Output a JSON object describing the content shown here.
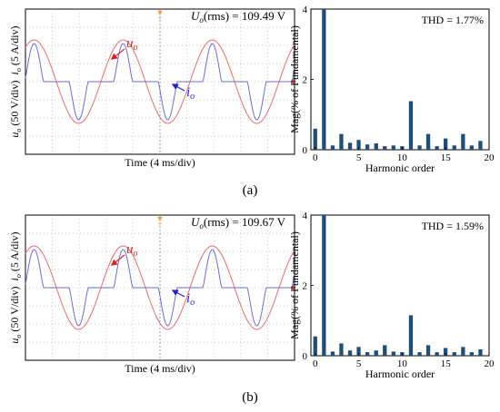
{
  "colors": {
    "voltage": "#f06a6a",
    "current": "#6b6bdc",
    "annot_voltage": "#e02020",
    "annot_current": "#2222cc",
    "bar": "#1f4e79",
    "grid": "#9a9a9a",
    "trigger": "#f0a030"
  },
  "panels": [
    {
      "label": "(a)",
      "scope": {
        "rms_label": "U",
        "rms_subscript": "o",
        "rms_text": "(rms) = 109.49 V",
        "ylabel_u": "u",
        "ylabel_u_sub": "o",
        "ylabel_u_unit": " (50 V/div)",
        "ylabel_i": "i",
        "ylabel_i_sub": "o",
        "ylabel_i_unit": " (5 A/div)",
        "xlabel": "Time (4 ms/div)",
        "u_label": "u",
        "u_sub": "o",
        "i_label": "i",
        "i_sub": "o"
      },
      "chart_data": {
        "type": "bar",
        "thd_text": "THD = 1.77%",
        "xlabel": "Harmonic order",
        "ylabel": "Mag(% of Fundamental)",
        "ylim": [
          0,
          4
        ],
        "yticks": [
          0,
          2,
          4
        ],
        "xlim": [
          -0.5,
          20
        ],
        "xticks": [
          0,
          5,
          10,
          15,
          20
        ],
        "categories": [
          0,
          1,
          2,
          3,
          4,
          5,
          6,
          7,
          8,
          9,
          10,
          11,
          12,
          13,
          14,
          15,
          16,
          17,
          18,
          19
        ],
        "values": [
          0.6,
          4.0,
          0.12,
          0.45,
          0.2,
          0.28,
          0.15,
          0.18,
          0.1,
          0.12,
          0.1,
          1.38,
          0.12,
          0.45,
          0.1,
          0.32,
          0.12,
          0.45,
          0.12,
          0.25
        ]
      }
    },
    {
      "label": "(b)",
      "scope": {
        "rms_label": "U",
        "rms_subscript": "o",
        "rms_text": "(rms) = 109.67 V",
        "ylabel_u": "u",
        "ylabel_u_sub": "o",
        "ylabel_u_unit": " (50 V/div)",
        "ylabel_i": "i",
        "ylabel_i_sub": "o",
        "ylabel_i_unit": " (5 A/div)",
        "xlabel": "Time (4 ms/div)",
        "u_label": "u",
        "u_sub": "o",
        "i_label": "i",
        "i_sub": "o"
      },
      "chart_data": {
        "type": "bar",
        "thd_text": "THD = 1.59%",
        "xlabel": "Harmonic order",
        "ylabel": "Mag(% of Fundamental)",
        "ylim": [
          0,
          4
        ],
        "yticks": [
          0,
          2,
          4
        ],
        "xlim": [
          -0.5,
          20
        ],
        "xticks": [
          0,
          5,
          10,
          15,
          20
        ],
        "categories": [
          0,
          1,
          2,
          3,
          4,
          5,
          6,
          7,
          8,
          9,
          10,
          11,
          12,
          13,
          14,
          15,
          16,
          17,
          18,
          19
        ],
        "values": [
          0.55,
          4.0,
          0.12,
          0.35,
          0.15,
          0.25,
          0.1,
          0.15,
          0.3,
          0.12,
          0.1,
          1.15,
          0.1,
          0.3,
          0.1,
          0.22,
          0.1,
          0.25,
          0.1,
          0.18
        ]
      }
    }
  ]
}
